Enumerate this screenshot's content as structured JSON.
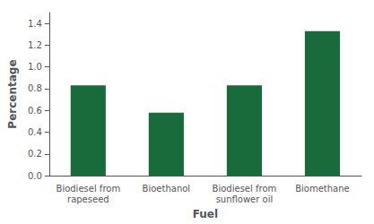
{
  "chart_data": {
    "type": "bar",
    "categories": [
      "Biodiesel from\nrapeseed",
      "Bioethanol",
      "Biodiesel from\nsunflower oil",
      "Biomethane"
    ],
    "values": [
      0.83,
      0.58,
      0.83,
      1.33
    ],
    "color": "#1a6b3c",
    "xlabel": "Fuel",
    "ylabel": "Percentage",
    "ylim": [
      0,
      1.5
    ],
    "yticks": [
      {
        "value": 0,
        "label": "0.0"
      },
      0.2,
      0.4,
      0.6,
      0.8,
      {
        "value": 1.0,
        "label": "1.0"
      },
      1.2,
      1.4
    ],
    "grid": false
  }
}
